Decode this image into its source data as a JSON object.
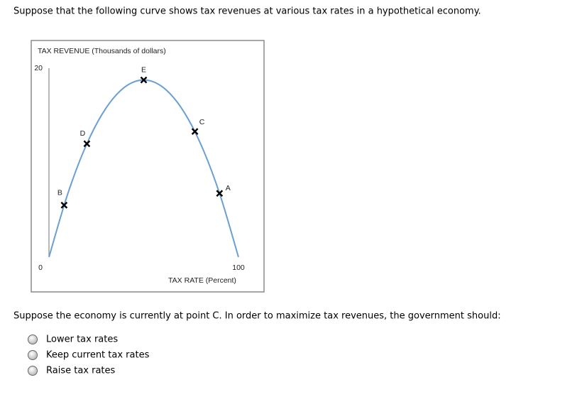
{
  "question": "Suppose that the following curve shows tax revenues at various tax rates in a hypothetical economy.",
  "chart_data": {
    "type": "line",
    "y_label": "TAX REVENUE (Thousands of dollars)",
    "x_label": "TAX RATE (Percent)",
    "xlim": [
      0,
      100
    ],
    "ylim": [
      0,
      20
    ],
    "xticks": [
      100
    ],
    "yticks": [
      0,
      20
    ],
    "series": [
      {
        "color": "#6a9fd4",
        "x": [
          0,
          10,
          20,
          30,
          40,
          50,
          60,
          70,
          80,
          90,
          100
        ],
        "values": [
          0,
          6.75,
          12,
          15.75,
          18,
          18.75,
          18,
          15.75,
          12,
          6.75,
          0
        ]
      }
    ],
    "points": {
      "color": "#000000",
      "labels": [
        "B",
        "D",
        "E",
        "C",
        "A"
      ],
      "x": [
        8,
        20,
        50,
        77,
        90
      ],
      "values": [
        5.5,
        12,
        18.75,
        13.3,
        6.75
      ]
    }
  },
  "prompt": "Suppose the economy is currently at point C. In order to maximize tax revenues, the government should:",
  "options": [
    "Lower tax rates",
    "Keep current tax rates",
    "Raise tax rates"
  ]
}
